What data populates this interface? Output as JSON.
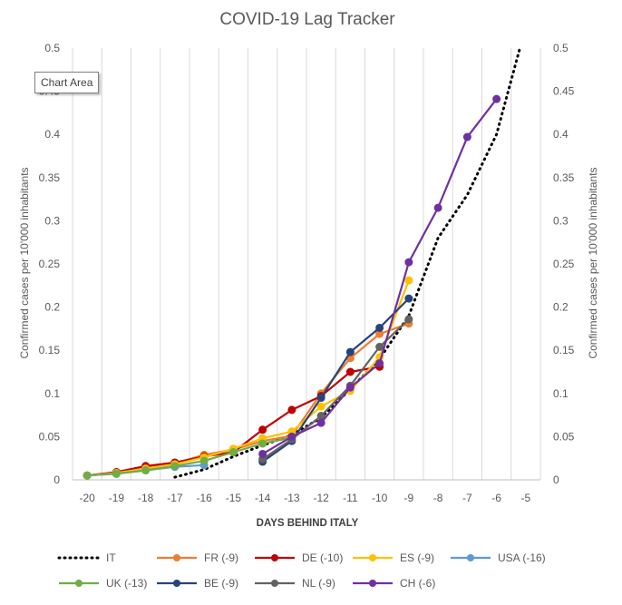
{
  "chart_data": {
    "type": "line",
    "title": "COVID-19 Lag Tracker",
    "xlabel": "DAYS BEHIND ITALY",
    "ylabel": "Confirmed  cases per 10'000 inhabitants",
    "y2label": "Confirmed cases per 10'000 inhabitants",
    "xlim": [
      -20,
      -5
    ],
    "ylim": [
      0,
      0.5
    ],
    "x_ticks": [
      -20,
      -19,
      -18,
      -17,
      -16,
      -15,
      -14,
      -13,
      -12,
      -11,
      -10,
      -9,
      -8,
      -7,
      -6,
      -5
    ],
    "x_tick_labels": [
      "-20",
      "-19",
      "-18",
      "-17",
      "-16",
      "-15",
      "-14",
      "-13",
      "-12",
      "-11",
      "-10",
      "-9",
      "-8",
      "-7",
      "-6",
      "-5"
    ],
    "y_ticks": [
      0,
      0.05,
      0.1,
      0.15,
      0.2,
      0.25,
      0.3,
      0.35,
      0.4,
      0.45,
      0.5
    ],
    "y_tick_labels": [
      "0",
      "0.05",
      "0.1",
      "0.15",
      "0.2",
      "0.25",
      "0.3",
      "0.35",
      "0.4",
      "0.45",
      "0.5"
    ],
    "grid": "vertical",
    "legend_position": "bottom",
    "series": [
      {
        "name": "IT",
        "color": "#000000",
        "style": "dotted",
        "marker": false,
        "x": [
          -17,
          -16,
          -15,
          -14,
          -13,
          -12,
          -11,
          -10,
          -9,
          -8,
          -7,
          -6,
          -5.2
        ],
        "y": [
          0.003,
          0.012,
          0.027,
          0.04,
          0.052,
          0.072,
          0.105,
          0.14,
          0.19,
          0.28,
          0.33,
          0.4,
          0.5
        ]
      },
      {
        "name": "FR (-9)",
        "color": "#ED7D31",
        "style": "solid",
        "marker": true,
        "x": [
          -20,
          -19,
          -18,
          -17,
          -16,
          -15,
          -14,
          -13,
          -12,
          -11,
          -10,
          -9
        ],
        "y": [
          0.005,
          0.008,
          0.014,
          0.019,
          0.029,
          0.035,
          0.045,
          0.051,
          0.1,
          0.141,
          0.169,
          0.181
        ]
      },
      {
        "name": "DE (-10)",
        "color": "#C00000",
        "style": "solid",
        "marker": true,
        "x": [
          -20,
          -19,
          -18,
          -17,
          -16,
          -15,
          -14,
          -13,
          -12,
          -11,
          -10
        ],
        "y": [
          0.005,
          0.009,
          0.016,
          0.02,
          0.027,
          0.032,
          0.058,
          0.081,
          0.097,
          0.125,
          0.131
        ]
      },
      {
        "name": "ES (-9)",
        "color": "#FFC000",
        "style": "solid",
        "marker": true,
        "x": [
          -20,
          -19,
          -18,
          -17,
          -16,
          -15,
          -14,
          -13,
          -12,
          -11,
          -10,
          -9
        ],
        "y": [
          0.005,
          0.008,
          0.013,
          0.018,
          0.026,
          0.036,
          0.048,
          0.056,
          0.085,
          0.103,
          0.142,
          0.231
        ]
      },
      {
        "name": "USA (-16)",
        "color": "#5B9BD5",
        "style": "solid",
        "marker": true,
        "x": [
          -20,
          -19,
          -18,
          -17,
          -16
        ],
        "y": [
          0.005,
          0.007,
          0.011,
          0.015,
          0.017
        ]
      },
      {
        "name": "UK (-13)",
        "color": "#70AD47",
        "style": "solid",
        "marker": true,
        "x": [
          -20,
          -19,
          -18,
          -17,
          -16,
          -15,
          -14,
          -13
        ],
        "y": [
          0.005,
          0.007,
          0.011,
          0.016,
          0.022,
          0.032,
          0.042,
          0.049
        ]
      },
      {
        "name": "BE (-9)",
        "color": "#264478",
        "style": "solid",
        "marker": true,
        "x": [
          -14,
          -13,
          -12,
          -11,
          -10,
          -9
        ],
        "y": [
          0.021,
          0.045,
          0.095,
          0.148,
          0.176,
          0.21
        ]
      },
      {
        "name": "NL (-9)",
        "color": "#636363",
        "style": "solid",
        "marker": true,
        "x": [
          -14,
          -13,
          -12,
          -11,
          -10,
          -9
        ],
        "y": [
          0.024,
          0.047,
          0.074,
          0.109,
          0.154,
          0.186
        ]
      },
      {
        "name": "CH (-6)",
        "color": "#7030A0",
        "style": "solid",
        "marker": true,
        "x": [
          -14,
          -13,
          -12,
          -11,
          -10,
          -9,
          -8,
          -7,
          -6
        ],
        "y": [
          0.03,
          0.05,
          0.066,
          0.107,
          0.135,
          0.252,
          0.315,
          0.397,
          0.441
        ]
      }
    ]
  },
  "tooltip": {
    "label": "Chart Area"
  }
}
